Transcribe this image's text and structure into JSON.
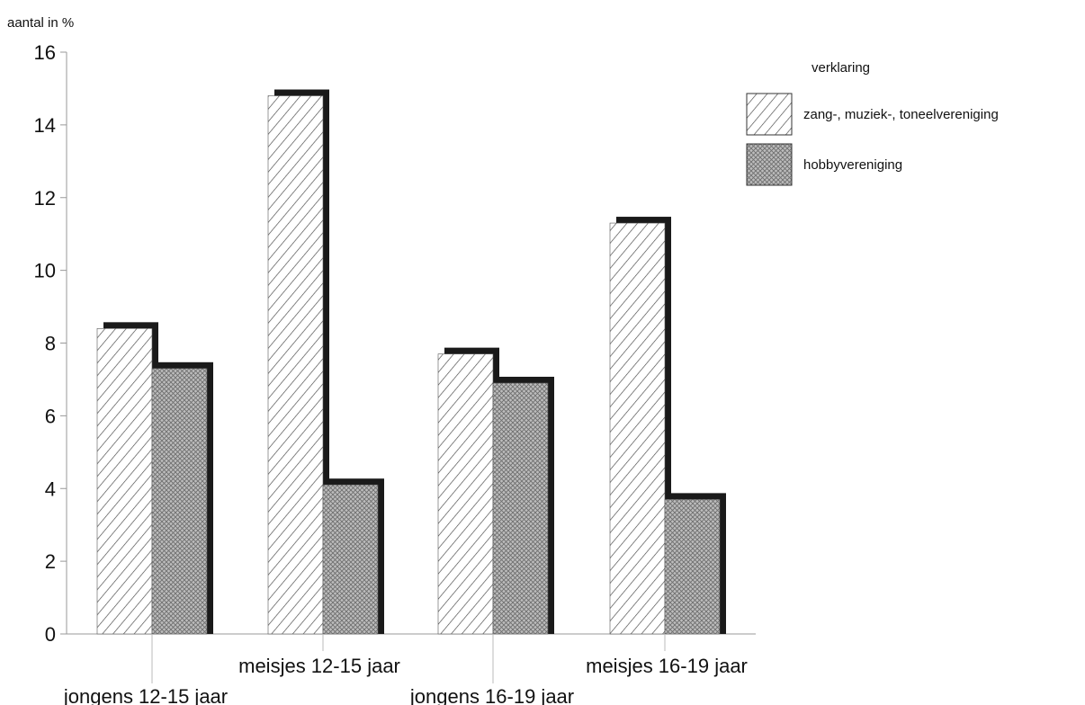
{
  "chart_data": {
    "type": "bar",
    "ylabel": "aantal in %",
    "ylim": [
      0,
      16
    ],
    "yticks": [
      0,
      2,
      4,
      6,
      8,
      10,
      12,
      14,
      16
    ],
    "grid": false,
    "categories": [
      "jongens 12-15 jaar",
      "meisjes 12-15 jaar",
      "jongens 16-19 jaar",
      "meisjes 16-19 jaar"
    ],
    "series": [
      {
        "name": "zang-, muziek-, toneelvereniging",
        "values": [
          8.4,
          14.8,
          7.7,
          11.3
        ],
        "pattern": "diagonal-hatch"
      },
      {
        "name": "hobbyvereniging",
        "values": [
          7.3,
          4.1,
          6.9,
          3.7
        ],
        "pattern": "crosshatch-grey"
      }
    ],
    "legend": {
      "title": "verklaring",
      "position": "top-right"
    },
    "colors": {
      "shadow": "#1a1a1a",
      "hatch": "#444444",
      "crosshatch_fill": "#bdbdbd"
    }
  }
}
